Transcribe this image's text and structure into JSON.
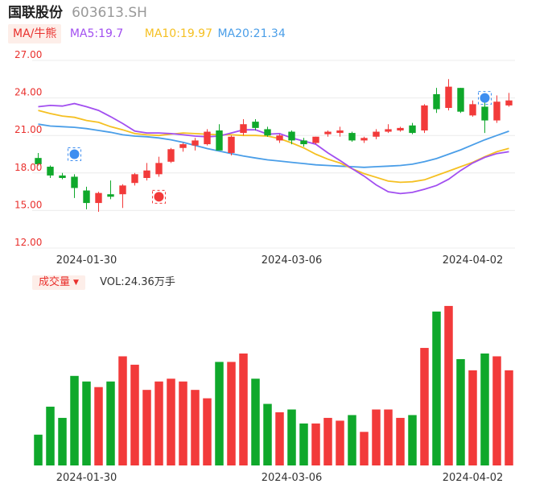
{
  "header": {
    "name": "国联股份",
    "code": "603613.SH"
  },
  "ma_legend": {
    "tag_label": "MA/牛熊",
    "ma5": {
      "label": "MA5:19.7",
      "color": "#a24ff0"
    },
    "ma10": {
      "label": "MA10:19.97",
      "color": "#f5c022"
    },
    "ma20": {
      "label": "MA20:21.34",
      "color": "#4a9ee8"
    }
  },
  "volume_legend": {
    "tag_label": "成交量",
    "caret": "▼",
    "value_label": "VOL:24.36万手"
  },
  "colors": {
    "up": "#f23a3a",
    "down": "#0fa82b",
    "grid": "#ececec",
    "axis_text": "#e9302d"
  },
  "chart_data": [
    {
      "type": "candlestick",
      "title": "",
      "ylim": [
        12,
        27
      ],
      "yticks": [
        "27.00",
        "24.00",
        "21.00",
        "18.00",
        "15.00",
        "12.00"
      ],
      "xticks": [
        {
          "index": 4,
          "label": "2024-01-30"
        },
        {
          "index": 21,
          "label": "2024-03-06"
        },
        {
          "index": 36,
          "label": "2024-04-02"
        }
      ],
      "candles": [
        {
          "o": 19.2,
          "h": 19.6,
          "l": 18.6,
          "c": 18.7
        },
        {
          "o": 18.5,
          "h": 18.6,
          "l": 17.6,
          "c": 17.8
        },
        {
          "o": 17.8,
          "h": 18.0,
          "l": 17.5,
          "c": 17.6
        },
        {
          "o": 17.7,
          "h": 17.9,
          "l": 16.0,
          "c": 16.8
        },
        {
          "o": 16.6,
          "h": 16.9,
          "l": 15.1,
          "c": 15.6
        },
        {
          "o": 15.6,
          "h": 16.5,
          "l": 14.9,
          "c": 16.4
        },
        {
          "o": 16.3,
          "h": 17.4,
          "l": 15.9,
          "c": 16.1
        },
        {
          "o": 16.3,
          "h": 17.1,
          "l": 15.2,
          "c": 17.0
        },
        {
          "o": 17.2,
          "h": 18.0,
          "l": 17.0,
          "c": 17.9
        },
        {
          "o": 17.6,
          "h": 18.8,
          "l": 17.4,
          "c": 18.2
        },
        {
          "o": 17.9,
          "h": 19.3,
          "l": 17.7,
          "c": 18.8
        },
        {
          "o": 18.9,
          "h": 20.0,
          "l": 18.8,
          "c": 19.9
        },
        {
          "o": 20.0,
          "h": 20.4,
          "l": 19.7,
          "c": 20.3
        },
        {
          "o": 20.2,
          "h": 20.8,
          "l": 19.8,
          "c": 20.6
        },
        {
          "o": 20.3,
          "h": 21.5,
          "l": 20.2,
          "c": 21.3
        },
        {
          "o": 21.4,
          "h": 21.9,
          "l": 19.9,
          "c": 19.8
        },
        {
          "o": 19.6,
          "h": 21.0,
          "l": 19.4,
          "c": 20.9
        },
        {
          "o": 21.2,
          "h": 22.3,
          "l": 21.0,
          "c": 21.9
        },
        {
          "o": 22.1,
          "h": 22.3,
          "l": 21.4,
          "c": 21.6
        },
        {
          "o": 21.5,
          "h": 21.7,
          "l": 20.9,
          "c": 21.0
        },
        {
          "o": 20.6,
          "h": 21.1,
          "l": 20.4,
          "c": 21.0
        },
        {
          "o": 21.3,
          "h": 21.4,
          "l": 20.3,
          "c": 20.6
        },
        {
          "o": 20.6,
          "h": 20.8,
          "l": 20.1,
          "c": 20.3
        },
        {
          "o": 20.4,
          "h": 20.9,
          "l": 20.3,
          "c": 20.9
        },
        {
          "o": 21.1,
          "h": 21.4,
          "l": 20.9,
          "c": 21.3
        },
        {
          "o": 21.2,
          "h": 21.7,
          "l": 20.9,
          "c": 21.4
        },
        {
          "o": 21.2,
          "h": 21.3,
          "l": 20.5,
          "c": 20.6
        },
        {
          "o": 20.6,
          "h": 20.9,
          "l": 20.4,
          "c": 20.8
        },
        {
          "o": 20.9,
          "h": 21.5,
          "l": 20.7,
          "c": 21.3
        },
        {
          "o": 21.3,
          "h": 21.9,
          "l": 21.2,
          "c": 21.5
        },
        {
          "o": 21.4,
          "h": 21.7,
          "l": 21.3,
          "c": 21.6
        },
        {
          "o": 21.8,
          "h": 22.0,
          "l": 21.1,
          "c": 21.2
        },
        {
          "o": 21.4,
          "h": 23.5,
          "l": 21.2,
          "c": 23.4
        },
        {
          "o": 24.3,
          "h": 24.8,
          "l": 22.8,
          "c": 23.1
        },
        {
          "o": 23.2,
          "h": 25.5,
          "l": 23.0,
          "c": 24.9
        },
        {
          "o": 24.8,
          "h": 24.8,
          "l": 22.8,
          "c": 22.9
        },
        {
          "o": 22.6,
          "h": 23.8,
          "l": 22.5,
          "c": 23.5
        },
        {
          "o": 23.3,
          "h": 24.0,
          "l": 21.2,
          "c": 22.2
        },
        {
          "o": 22.2,
          "h": 24.2,
          "l": 22.0,
          "c": 23.7
        },
        {
          "o": 23.4,
          "h": 24.4,
          "l": 23.3,
          "c": 23.8
        }
      ],
      "ma5": [
        23.3,
        23.4,
        23.35,
        23.55,
        23.3,
        23.0,
        22.5,
        21.95,
        21.35,
        21.2,
        21.2,
        21.15,
        21.05,
        20.95,
        20.9,
        20.95,
        21.2,
        21.45,
        21.45,
        21.1,
        21.15,
        20.8,
        20.55,
        20.3,
        19.6,
        19.0,
        18.35,
        17.75,
        17.05,
        16.5,
        16.35,
        16.45,
        16.7,
        17.0,
        17.5,
        18.2,
        18.8,
        19.25,
        19.55,
        19.7
      ],
      "ma10": [
        23.0,
        22.75,
        22.55,
        22.45,
        22.2,
        22.05,
        21.7,
        21.45,
        21.15,
        21.05,
        21.0,
        21.1,
        21.2,
        21.15,
        21.1,
        21.05,
        21.05,
        21.0,
        21.0,
        20.95,
        20.75,
        20.4,
        20.0,
        19.5,
        19.1,
        18.8,
        18.35,
        17.95,
        17.65,
        17.35,
        17.25,
        17.3,
        17.45,
        17.8,
        18.15,
        18.5,
        18.85,
        19.3,
        19.7,
        19.97
      ],
      "ma20": [
        21.9,
        21.75,
        21.7,
        21.65,
        21.55,
        21.4,
        21.25,
        21.05,
        20.95,
        20.9,
        20.8,
        20.65,
        20.45,
        20.2,
        19.95,
        19.75,
        19.55,
        19.35,
        19.2,
        19.05,
        18.95,
        18.85,
        18.75,
        18.65,
        18.6,
        18.55,
        18.5,
        18.45,
        18.5,
        18.55,
        18.6,
        18.7,
        18.9,
        19.15,
        19.5,
        19.85,
        20.25,
        20.65,
        21.0,
        21.34
      ]
    },
    {
      "type": "bar",
      "title": "",
      "volumes": [
        11,
        21,
        17,
        32,
        30,
        28,
        30,
        39,
        36,
        27,
        30,
        31,
        30,
        27,
        24,
        37,
        37,
        40,
        31,
        22,
        19,
        20,
        15,
        15,
        17,
        16,
        18,
        12,
        20,
        20,
        17,
        18,
        42,
        55,
        57,
        38,
        34,
        40,
        39,
        34
      ],
      "xticks": [
        {
          "index": 4,
          "label": "2024-01-30"
        },
        {
          "index": 21,
          "label": "2024-03-06"
        },
        {
          "index": 36,
          "label": "2024-04-02"
        }
      ]
    }
  ]
}
